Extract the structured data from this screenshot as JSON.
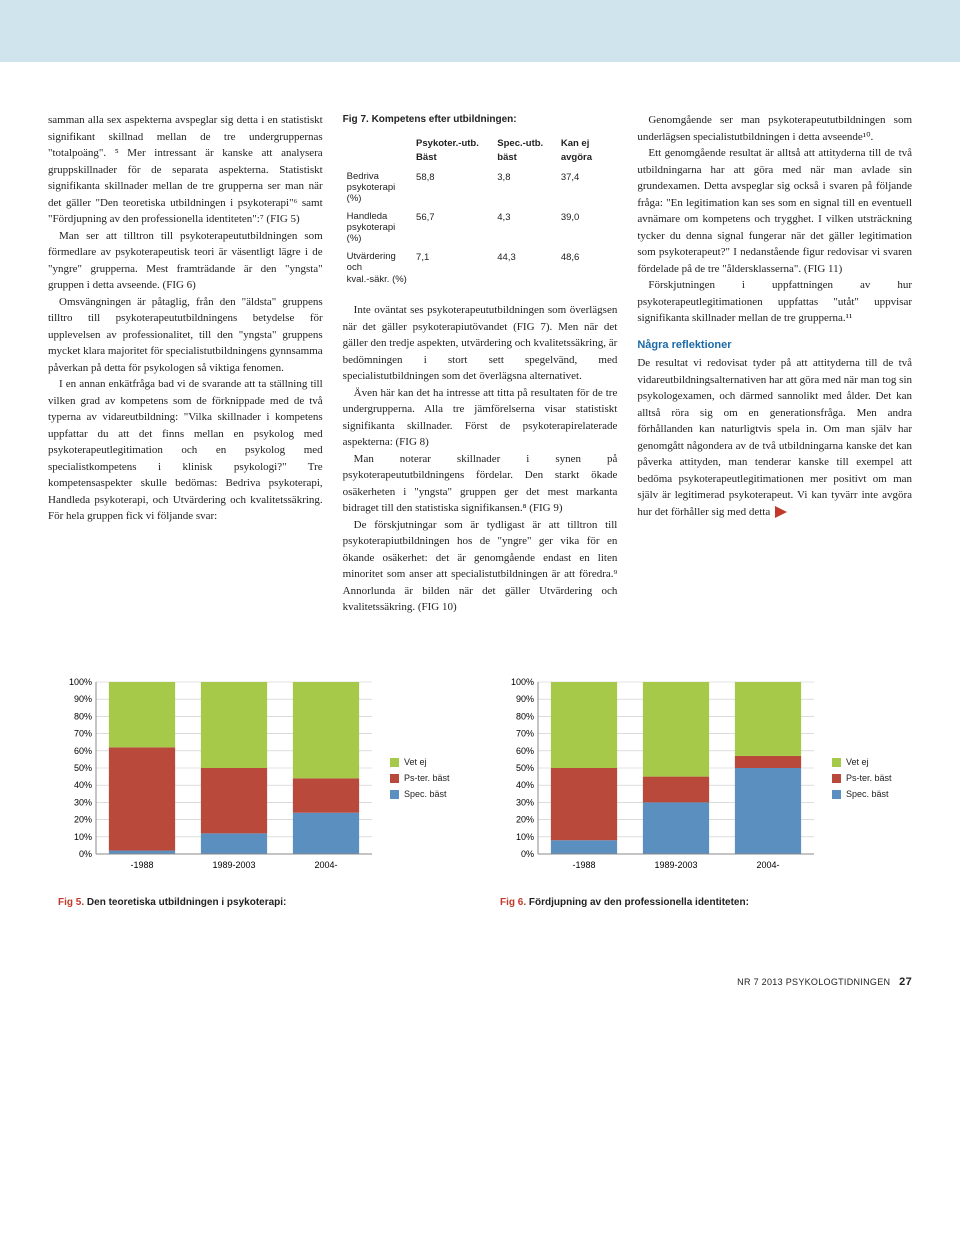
{
  "header_bar_color": "#d0e4ed",
  "col1": {
    "p1": "samman alla sex aspekterna avspeglar sig detta i en statistiskt signifikant skillnad mellan de tre undergruppernas \"totalpoäng\". ⁵ Mer intressant är kanske att analysera gruppskillnader för de separata aspekterna. Statistiskt signifikanta skillnader mellan de tre grupperna ser man när det gäller \"Den teoretiska utbildningen i psykoterapi\"⁶ samt \"Fördjupning av den professionella identiteten\":⁷ (FIG 5)",
    "p2": "Man ser att tilltron till psykoterapeututbildningen som förmedlare av psykoterapeutisk teori är väsentligt lägre i de \"yngre\" grupperna. Mest framträdande är den \"yngsta\" gruppen i detta avseende. (FIG 6)",
    "p3": "Omsvängningen är påtaglig, från den \"äldsta\" gruppens tilltro till psykoterapeututbildningens betydelse för upplevelsen av professionalitet, till den \"yngsta\" gruppens mycket klara majoritet för specialistutbildningens gynnsamma påverkan på detta för psykologen så viktiga fenomen.",
    "p4": "I en annan enkätfråga bad vi de svarande att ta ställning till vilken grad av kompetens som de förknippade med de två typerna av vidareutbildning: \"Vilka skillnader i kompetens uppfattar du att det finns mellan en psykolog med psykoterapeutlegitimation och en psykolog med specialistkompetens i klinisk psykologi?\" Tre kompetensaspekter skulle bedömas: Bedriva psykoterapi, Handleda psykoterapi, och Utvärdering och kvalitetssäkring. För hela gruppen fick vi följande svar:"
  },
  "fig7": {
    "title": "Fig 7. Kompetens efter utbildningen:",
    "headers": [
      "",
      "Psykoter.-utb. Bäst",
      "Spec.-utb. bäst",
      "Kan ej avgöra"
    ],
    "rows": [
      {
        "label": "Bedriva\npsykoterapi (%)",
        "v1": "58,8",
        "v2": "3,8",
        "v3": "37,4"
      },
      {
        "label": "Handleda\npsykoterapi (%)",
        "v1": "56,7",
        "v2": "4,3",
        "v3": "39,0"
      },
      {
        "label": "Utvärdering och\nkval.-säkr. (%)",
        "v1": "7,1",
        "v2": "44,3",
        "v3": "48,6"
      }
    ]
  },
  "col2": {
    "p1": "Inte oväntat ses psykoterapeututbildningen som överlägsen när det gäller psykoterapiutövandet (FIG 7). Men när det gäller den tredje aspekten, utvärdering och kvalitetssäkring, är bedömningen i stort sett spegelvänd, med specialistutbildningen som det överlägsna alternativet.",
    "p2": "Även här kan det ha intresse att titta på resultaten för de tre undergrupperna. Alla tre jämförelserna visar statistiskt signifikanta skillnader. Först de psykoterapirelaterade aspekterna: (FIG 8)",
    "p3": "Man noterar skillnader i synen på psykoterapeututbildningens fördelar. Den starkt ökade osäkerheten i \"yngsta\" gruppen ger det mest markanta bidraget till den statistiska signifikansen.⁸ (FIG 9)",
    "p4": "De förskjutningar som är tydligast är att tilltron till psykoterapiutbildningen hos de \"yngre\" ger vika för en ökande osäkerhet: det är genomgående endast en liten minoritet som anser att specialistutbildningen är att föredra.⁹ Annorlunda är bilden när det gäller Utvärdering och kvalitetssäkring. (FIG 10)"
  },
  "col3": {
    "p1": "Genomgående ser man psykoterapeututbildningen som underlägsen specialistutbildningen i detta avseende¹⁰.",
    "p2": "Ett genomgående resultat är alltså att attityderna till de två utbildningarna har att göra med när man avlade sin grundexamen. Detta avspeglar sig också i svaren på följande fråga: \"En legitimation kan ses som en signal till en eventuell avnämare om kompetens och trygghet. I vilken utsträckning tycker du denna signal fungerar när det gäller legitimation som psykoterapeut?\" I nedanstående figur redovisar vi svaren fördelade på de tre \"åldersklasserna\". (FIG 11)",
    "p3": "Förskjutningen i uppfattningen av hur psykoterapeutlegitimationen uppfattas \"utåt\" uppvisar signifikanta skillnader mellan de tre grupperna.¹¹",
    "heading": "Några reflektioner",
    "p4": "De resultat vi redovisat tyder på att attityderna till de två vidareutbildningsalternativen har att göra med när man tog sin psykologexamen, och därmed sannolikt med ålder. Det kan alltså röra sig om en generationsfråga. Men andra förhållanden kan naturligtvis spela in. Om man själv har genomgått någondera av de två utbildningarna kanske det kan påverka attityden, man tenderar kanske till exempel att bedöma psykoterapeutlegitimationen mer positivt om man själv är legitimerad psykoterapeut. Vi kan tyvärr inte avgöra hur det förhåller sig med detta"
  },
  "legend": {
    "items": [
      {
        "label": "Vet ej",
        "color": "#a7c94a"
      },
      {
        "label": "Ps-ter. bäst",
        "color": "#b94a3b"
      },
      {
        "label": "Spec. bäst",
        "color": "#5b8fbf"
      }
    ]
  },
  "chart5": {
    "caption_num": "Fig 5.",
    "caption_text": "Den teoretiska utbildningen i psykoterapi:",
    "ylim": [
      0,
      100
    ],
    "ytick_step": 10,
    "categories": [
      "-1988",
      "1989-2003",
      "2004-"
    ],
    "series": [
      {
        "name": "Spec. bäst",
        "color": "#5b8fbf",
        "values": [
          2,
          12,
          24
        ]
      },
      {
        "name": "Ps-ter. bäst",
        "color": "#b94a3b",
        "values": [
          60,
          38,
          20
        ]
      },
      {
        "name": "Vet ej",
        "color": "#a7c94a",
        "values": [
          38,
          50,
          56
        ]
      }
    ],
    "background_color": "#ffffff",
    "grid_color": "#c8c8c8",
    "bar_width": 0.72,
    "font_size": 9
  },
  "chart6": {
    "caption_num": "Fig 6.",
    "caption_text": "Fördjupning av den professionella identiteten:",
    "ylim": [
      0,
      100
    ],
    "ytick_step": 10,
    "categories": [
      "-1988",
      "1989-2003",
      "2004-"
    ],
    "series": [
      {
        "name": "Spec. bäst",
        "color": "#5b8fbf",
        "values": [
          8,
          30,
          50
        ]
      },
      {
        "name": "Ps-ter. bäst",
        "color": "#b94a3b",
        "values": [
          42,
          15,
          7
        ]
      },
      {
        "name": "Vet ej",
        "color": "#a7c94a",
        "values": [
          50,
          55,
          43
        ]
      }
    ],
    "background_color": "#ffffff",
    "grid_color": "#c8c8c8",
    "bar_width": 0.72,
    "font_size": 9
  },
  "footer": {
    "issue": "NR 7 2013",
    "journal": "PSYKOLOGTIDNINGEN",
    "page": "27"
  }
}
